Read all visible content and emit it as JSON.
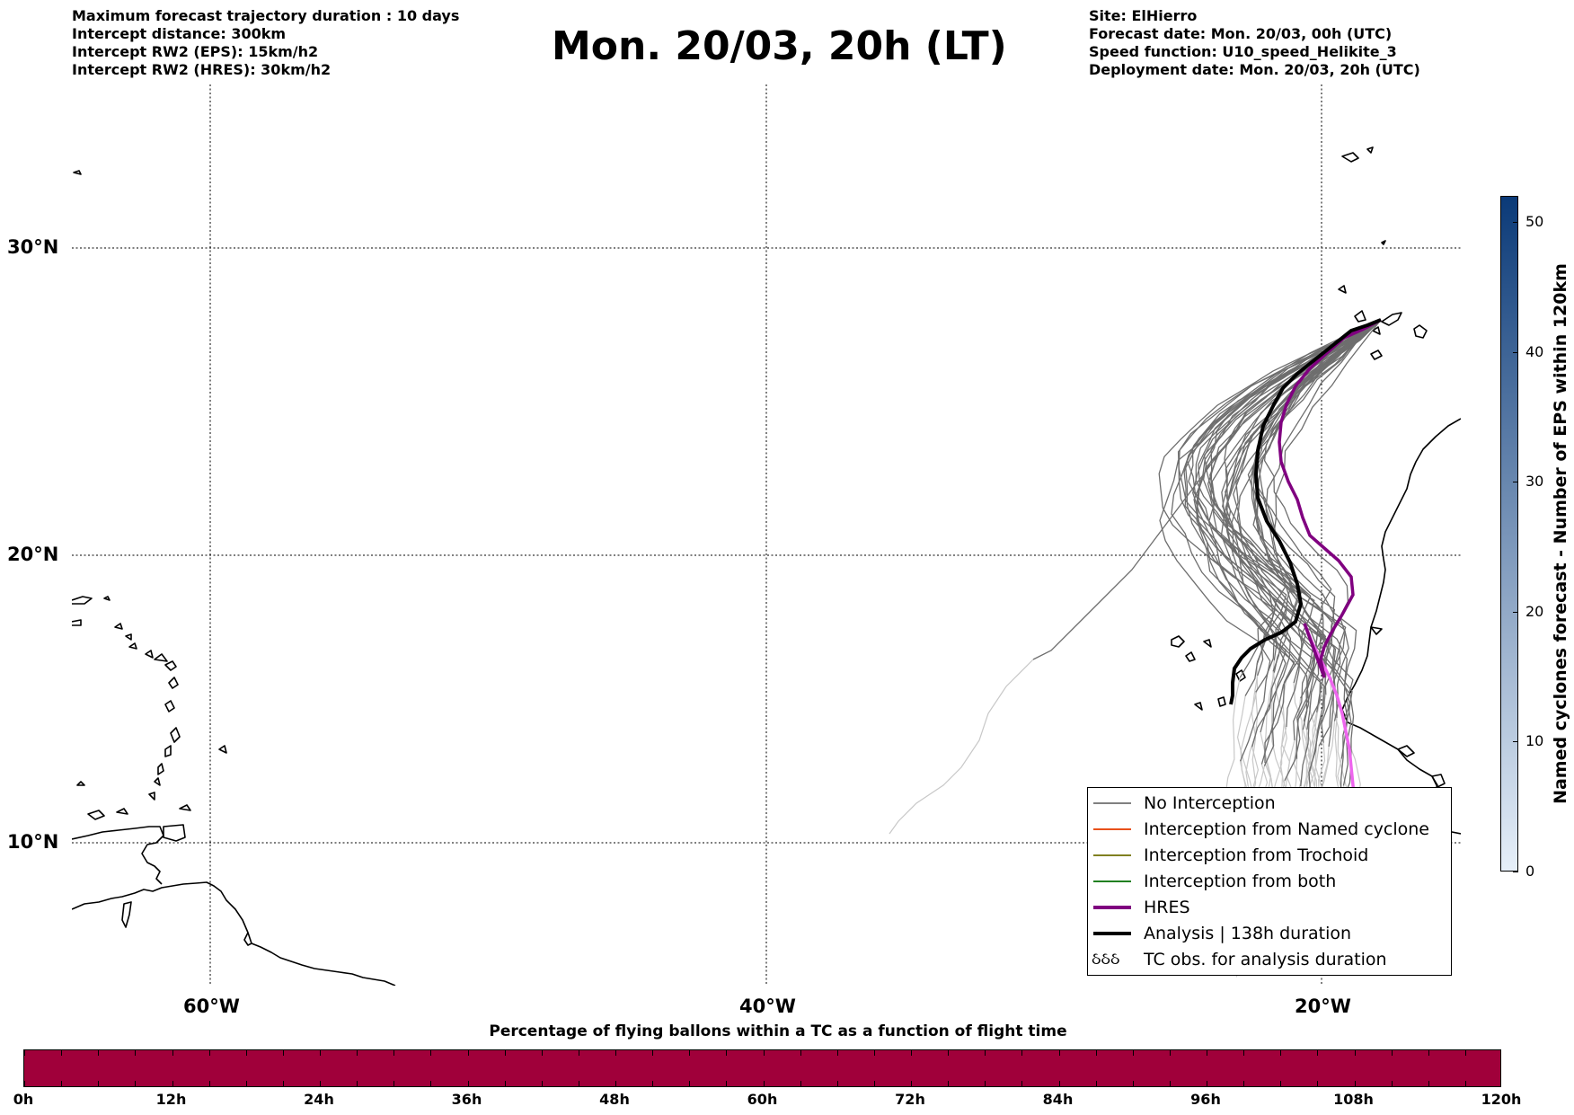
{
  "header": {
    "left": [
      "Maximum forecast trajectory duration : 10 days",
      "Intercept distance: 300km",
      "Intercept RW2 (EPS):  15km/h2",
      "Intercept RW2 (HRES): 30km/h2"
    ],
    "title": "Mon. 20/03, 20h (LT)",
    "right": [
      "Site: ElHierro",
      "Forecast date: Mon. 20/03, 00h (UTC)",
      "Speed function: U10_speed_Helikite_3",
      "Deployment date: Mon. 20/03, 20h (UTC)"
    ]
  },
  "map": {
    "lat_labels": [
      "30°N",
      "20°N",
      "10°N"
    ],
    "lon_labels": [
      "60°W",
      "40°W",
      "20°W"
    ],
    "gridlines": "dotted",
    "colors": {
      "ensemble": "#707070",
      "ensemble_faded": "#c8c8c8",
      "hres": "#800080",
      "hres_faded": "#ee66ee",
      "analysis": "#000000",
      "coast": "#000000"
    }
  },
  "legend": {
    "items": [
      {
        "label": "No Interception",
        "color": "#808080",
        "width": 1.2
      },
      {
        "label": "Interception from Named cyclone",
        "color": "#e8501a",
        "width": 1.2
      },
      {
        "label": "Interception from Trochoid",
        "color": "#808020",
        "width": 1.2
      },
      {
        "label": "Interception from both",
        "color": "#208020",
        "width": 1.2
      },
      {
        "label": "HRES",
        "color": "#800080",
        "width": 3.5
      },
      {
        "label": "Analysis | 138h duration",
        "color": "#000000",
        "width": 3.5
      }
    ],
    "tc_obs": {
      "symbol": "ઠઠઠ",
      "label": "TC obs. for analysis duration"
    }
  },
  "colorbar": {
    "label": "Named cyclones forecast - Number of EPS within 120km",
    "ticks": [
      "0",
      "10",
      "20",
      "30",
      "40",
      "50"
    ],
    "min": 0,
    "max": 52,
    "color_low": "#e6eff9",
    "color_high": "#0b3a78"
  },
  "timebar": {
    "title": "Percentage of flying ballons within a TC as a function of flight time",
    "ticks": [
      "0h",
      "12h",
      "24h",
      "36h",
      "48h",
      "60h",
      "72h",
      "84h",
      "96h",
      "108h",
      "120h"
    ],
    "color": "#a0003a"
  }
}
